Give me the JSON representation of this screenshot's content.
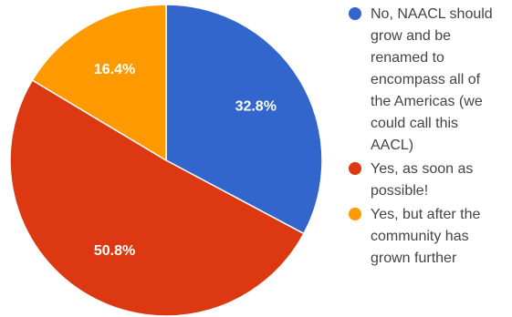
{
  "chart_data": {
    "type": "pie",
    "title": "",
    "start_angle_deg": 0,
    "direction": "clockwise",
    "slices": [
      {
        "label": "No, NAACL should grow and be renamed to encompass all of the Americas (we could call this AACL)",
        "value": 32.8,
        "value_label": "32.8%",
        "color": "#3366cc"
      },
      {
        "label": "Yes, as soon as possible!",
        "value": 50.8,
        "value_label": "50.8%",
        "color": "#dc3912"
      },
      {
        "label": "Yes, but after the community has grown further",
        "value": 16.4,
        "value_label": "16.4%",
        "color": "#ff9900"
      }
    ],
    "legend": {
      "position": "right",
      "lines": [
        [
          "No, NAACL should",
          "grow and be",
          "renamed to",
          "encompass all of",
          "the Americas (we",
          "could call this",
          "AACL)"
        ],
        [
          "Yes, as soon as",
          "possible!"
        ],
        [
          "Yes, but after the",
          "community has",
          "grown further"
        ]
      ]
    }
  }
}
